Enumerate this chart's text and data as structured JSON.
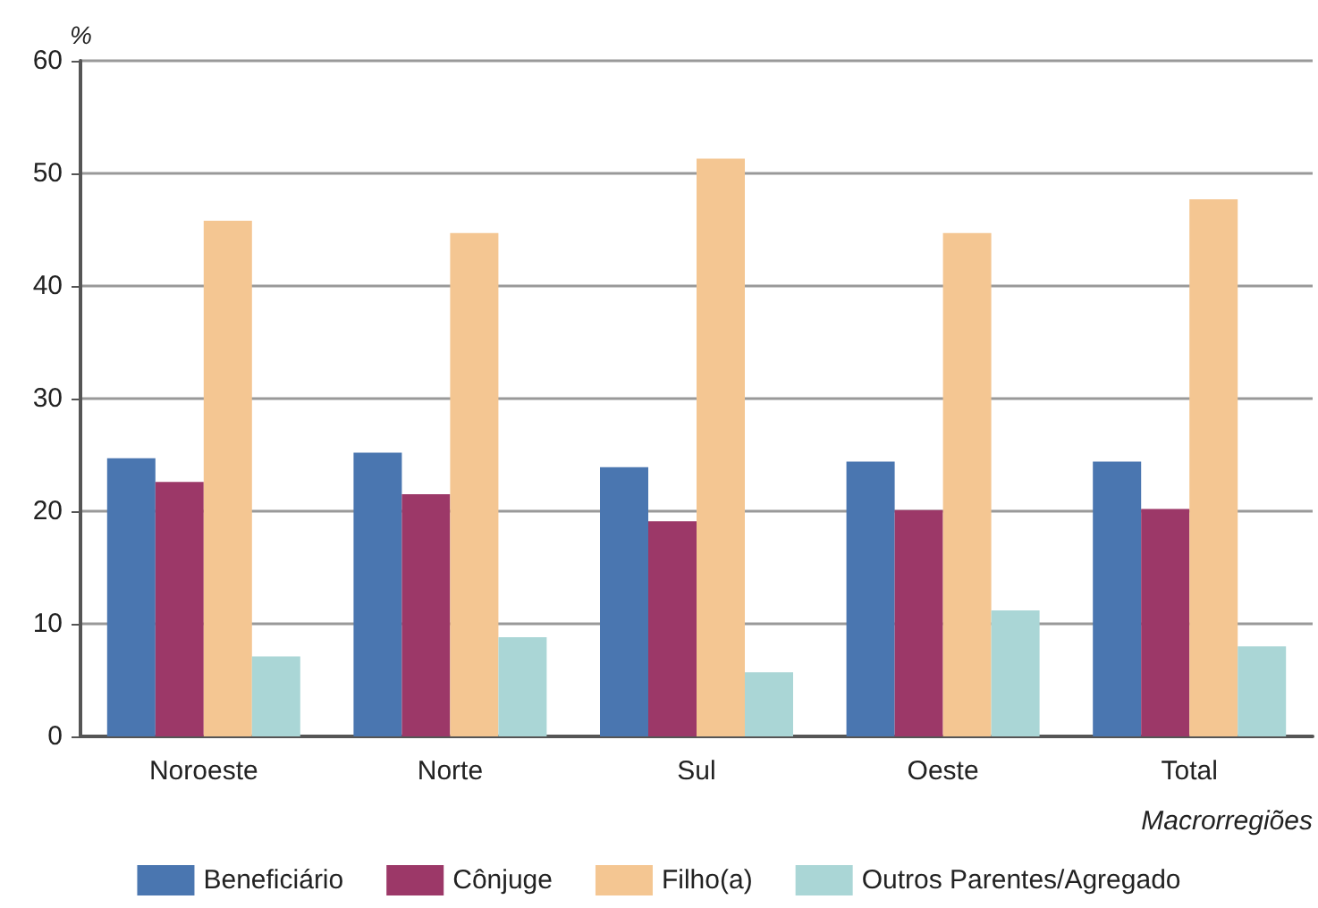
{
  "chart_data": {
    "type": "bar",
    "ylabel": "%",
    "xlabel": "Macrorregiões",
    "categories": [
      "Noroeste",
      "Norte",
      "Sul",
      "Oeste",
      "Total"
    ],
    "series": [
      {
        "name": "Beneficiário",
        "color": "#4a76b0",
        "values": [
          24.7,
          25.2,
          23.9,
          24.4,
          24.4
        ]
      },
      {
        "name": "Cônjuge",
        "color": "#9c3868",
        "values": [
          22.6,
          21.5,
          19.1,
          20.1,
          20.2
        ]
      },
      {
        "name": "Filho(a)",
        "color": "#f4c692",
        "values": [
          45.8,
          44.7,
          51.3,
          44.7,
          47.7
        ]
      },
      {
        "name": "Outros Parentes/Agregado",
        "color": "#aad6d6",
        "values": [
          7.1,
          8.8,
          5.7,
          11.2,
          8.0
        ]
      }
    ],
    "ylim": [
      0,
      60
    ],
    "yticks": [
      0,
      10,
      20,
      30,
      40,
      50,
      60
    ],
    "grid": "y",
    "legend": "bottom"
  }
}
